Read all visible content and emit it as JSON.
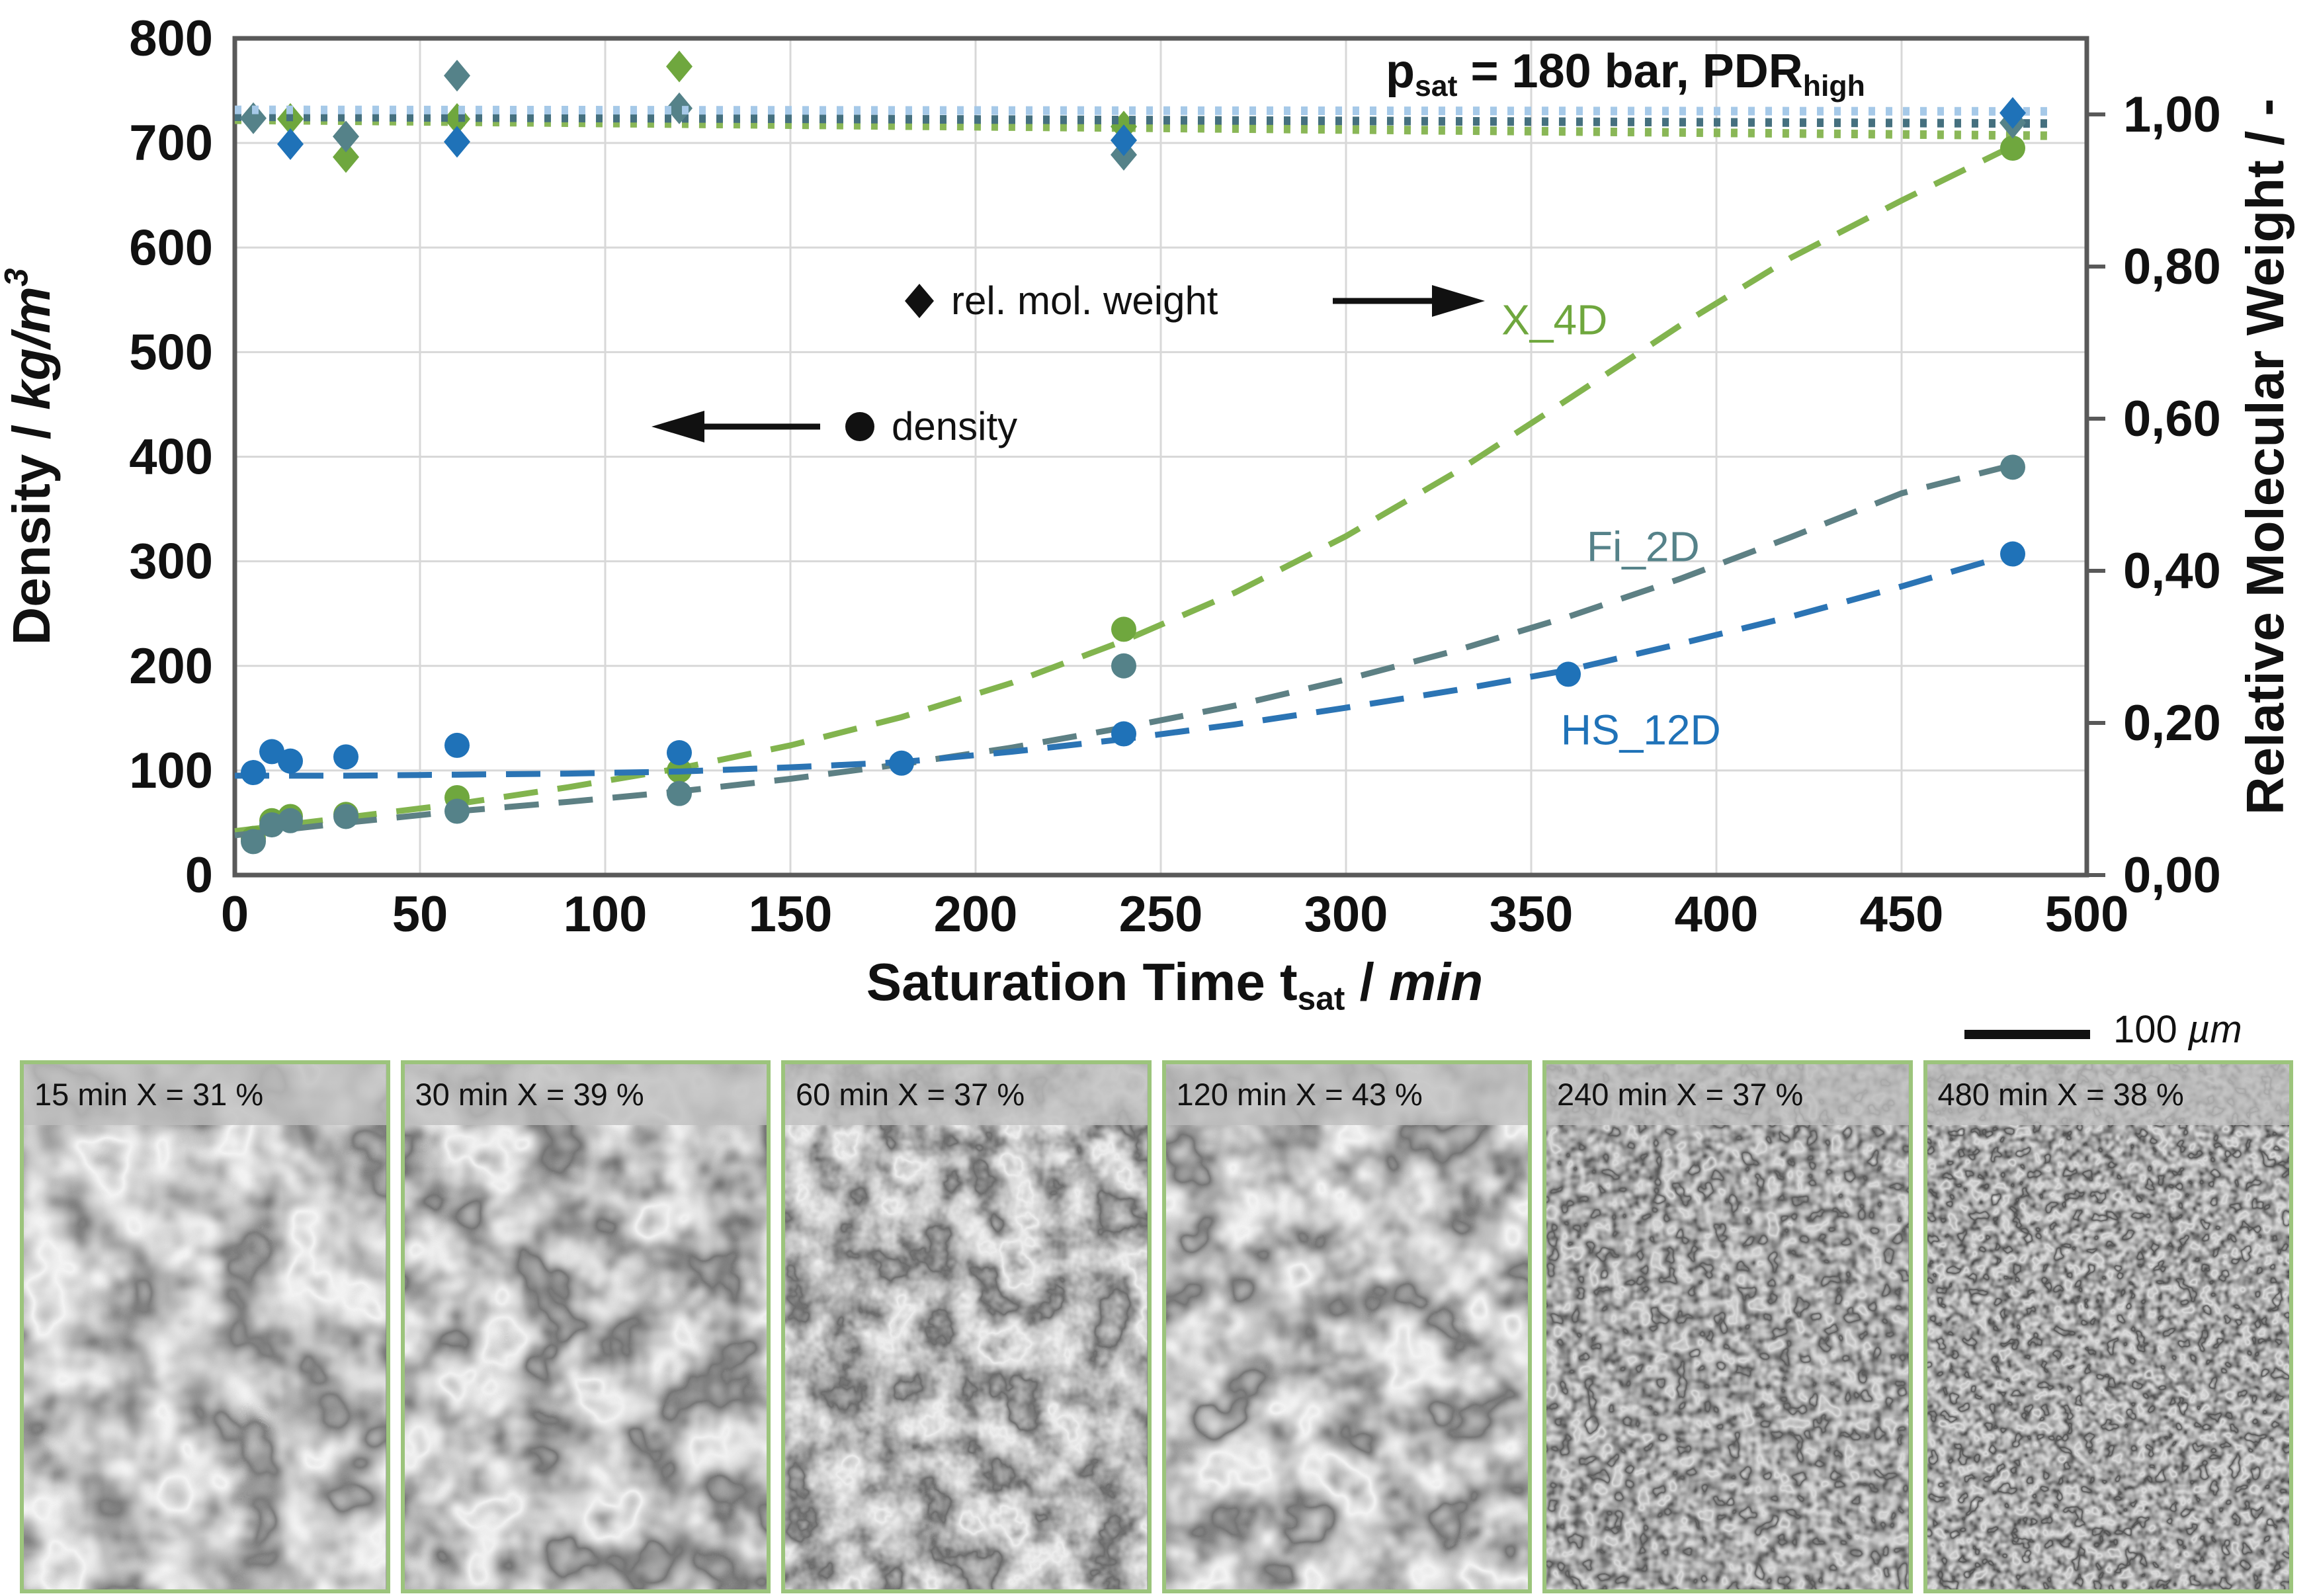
{
  "chart_data": {
    "type": "scatter",
    "title_segments": [
      {
        "text": "p"
      },
      {
        "text": "sat",
        "style": "sub"
      },
      {
        "text": " = 180 bar, PDR"
      },
      {
        "text": "high",
        "style": "sub"
      }
    ],
    "x_axis": {
      "label_segments": [
        {
          "text": "Saturation Time t"
        },
        {
          "text": "sat",
          "style": "sub"
        },
        {
          "text": " / "
        },
        {
          "text": "min",
          "style": "italic"
        }
      ],
      "range": [
        0,
        500
      ],
      "ticks": [
        0,
        50,
        100,
        150,
        200,
        250,
        300,
        350,
        400,
        450,
        500
      ]
    },
    "y_left": {
      "label_segments": [
        {
          "text": "Density / "
        },
        {
          "text": "kg/m",
          "style": "italic"
        },
        {
          "text": "3",
          "style": "sup"
        }
      ],
      "range": [
        0,
        800
      ],
      "ticks": [
        0,
        100,
        200,
        300,
        400,
        500,
        600,
        700,
        800
      ]
    },
    "y_right": {
      "label": "Relative Molecular Weight / -",
      "range": [
        0,
        1.1
      ],
      "tick_values": [
        0,
        0.2,
        0.4,
        0.6,
        0.8,
        1.0
      ],
      "tick_labels": [
        "0,00",
        "0,20",
        "0,40",
        "0,60",
        "0,80",
        "1,00"
      ]
    },
    "grid_color": "#d8d8d8",
    "frame_color": "#595959",
    "legend": {
      "molweight": {
        "text": "rel. mol. weight",
        "marker": "diamond",
        "arrow": "right"
      },
      "density": {
        "text": "density",
        "marker": "circle",
        "arrow": "left"
      }
    },
    "series": [
      {
        "name": "X_4D",
        "color": "#6fa73e",
        "trend_color": "#82b44e",
        "molweight_trend_color": "#8ab757",
        "label_pos": [
          342,
          517
        ],
        "density_points": [
          [
            5,
            35
          ],
          [
            10,
            52
          ],
          [
            15,
            56
          ],
          [
            30,
            58
          ],
          [
            60,
            74
          ],
          [
            120,
            100
          ],
          [
            240,
            235
          ],
          [
            480,
            695
          ]
        ],
        "molweight_points": [
          [
            15,
            0.994
          ],
          [
            30,
            0.944
          ],
          [
            60,
            0.994
          ],
          [
            120,
            1.063
          ],
          [
            240,
            0.984
          ]
        ],
        "density_trend": [
          [
            0,
            42
          ],
          [
            30,
            55
          ],
          [
            60,
            68
          ],
          [
            90,
            84
          ],
          [
            120,
            102
          ],
          [
            150,
            124
          ],
          [
            180,
            151
          ],
          [
            210,
            184
          ],
          [
            240,
            224
          ],
          [
            270,
            270
          ],
          [
            300,
            324
          ],
          [
            330,
            386
          ],
          [
            360,
            455
          ],
          [
            390,
            525
          ],
          [
            420,
            590
          ],
          [
            450,
            645
          ],
          [
            480,
            697
          ]
        ],
        "molweight_trend": [
          [
            0,
            0.993
          ],
          [
            490,
            0.972
          ]
        ]
      },
      {
        "name": "Fi_2D",
        "color": "#558289",
        "trend_color": "#5d8084",
        "molweight_trend_color": "#45707f",
        "label_pos": [
          365,
          300
        ],
        "density_points": [
          [
            5,
            32
          ],
          [
            10,
            48
          ],
          [
            15,
            52
          ],
          [
            30,
            56
          ],
          [
            60,
            61
          ],
          [
            120,
            78
          ],
          [
            240,
            200
          ],
          [
            480,
            390
          ]
        ],
        "molweight_points": [
          [
            5,
            0.995
          ],
          [
            30,
            0.971
          ],
          [
            60,
            1.051
          ],
          [
            120,
            1.008
          ],
          [
            240,
            0.947
          ],
          [
            480,
            0.989
          ]
        ],
        "density_trend": [
          [
            0,
            38
          ],
          [
            30,
            50
          ],
          [
            60,
            61
          ],
          [
            90,
            70
          ],
          [
            120,
            80
          ],
          [
            150,
            92
          ],
          [
            180,
            106
          ],
          [
            210,
            122
          ],
          [
            240,
            141
          ],
          [
            270,
            162
          ],
          [
            300,
            187
          ],
          [
            330,
            215
          ],
          [
            360,
            247
          ],
          [
            390,
            283
          ],
          [
            420,
            323
          ],
          [
            450,
            365
          ],
          [
            480,
            392
          ]
        ],
        "molweight_trend": [
          [
            0,
            0.997
          ],
          [
            490,
            0.988
          ]
        ]
      },
      {
        "name": "HS_12D",
        "color": "#1f72b8",
        "trend_color": "#2b74b4",
        "molweight_trend_color": "#a6c9e8",
        "label_pos": [
          358,
          125
        ],
        "density_points": [
          [
            5,
            98
          ],
          [
            10,
            118
          ],
          [
            15,
            109
          ],
          [
            30,
            113
          ],
          [
            60,
            124
          ],
          [
            120,
            117
          ],
          [
            180,
            107
          ],
          [
            240,
            135
          ],
          [
            360,
            192
          ],
          [
            480,
            307
          ]
        ],
        "molweight_points": [
          [
            15,
            0.961
          ],
          [
            60,
            0.964
          ],
          [
            240,
            0.966
          ],
          [
            480,
            1.002
          ]
        ],
        "density_trend": [
          [
            0,
            95
          ],
          [
            30,
            95
          ],
          [
            60,
            96
          ],
          [
            90,
            97
          ],
          [
            120,
            99
          ],
          [
            150,
            103
          ],
          [
            180,
            108
          ],
          [
            210,
            118
          ],
          [
            240,
            130
          ],
          [
            270,
            144
          ],
          [
            300,
            160
          ],
          [
            330,
            177
          ],
          [
            360,
            196
          ],
          [
            390,
            221
          ],
          [
            420,
            247
          ],
          [
            450,
            276
          ],
          [
            480,
            307
          ]
        ],
        "molweight_trend": [
          [
            0,
            1.006
          ],
          [
            490,
            1.004
          ]
        ]
      }
    ]
  },
  "micrographs": {
    "scale_bar": {
      "value": "100",
      "unit": "µm"
    },
    "panels": [
      {
        "label": "15 min X = 31 %"
      },
      {
        "label": "30 min X = 39 %"
      },
      {
        "label": "60 min X = 37 %"
      },
      {
        "label": "120 min X = 43 %"
      },
      {
        "label": "240 min X = 37 %"
      },
      {
        "label": "480 min X = 38 %"
      }
    ]
  }
}
